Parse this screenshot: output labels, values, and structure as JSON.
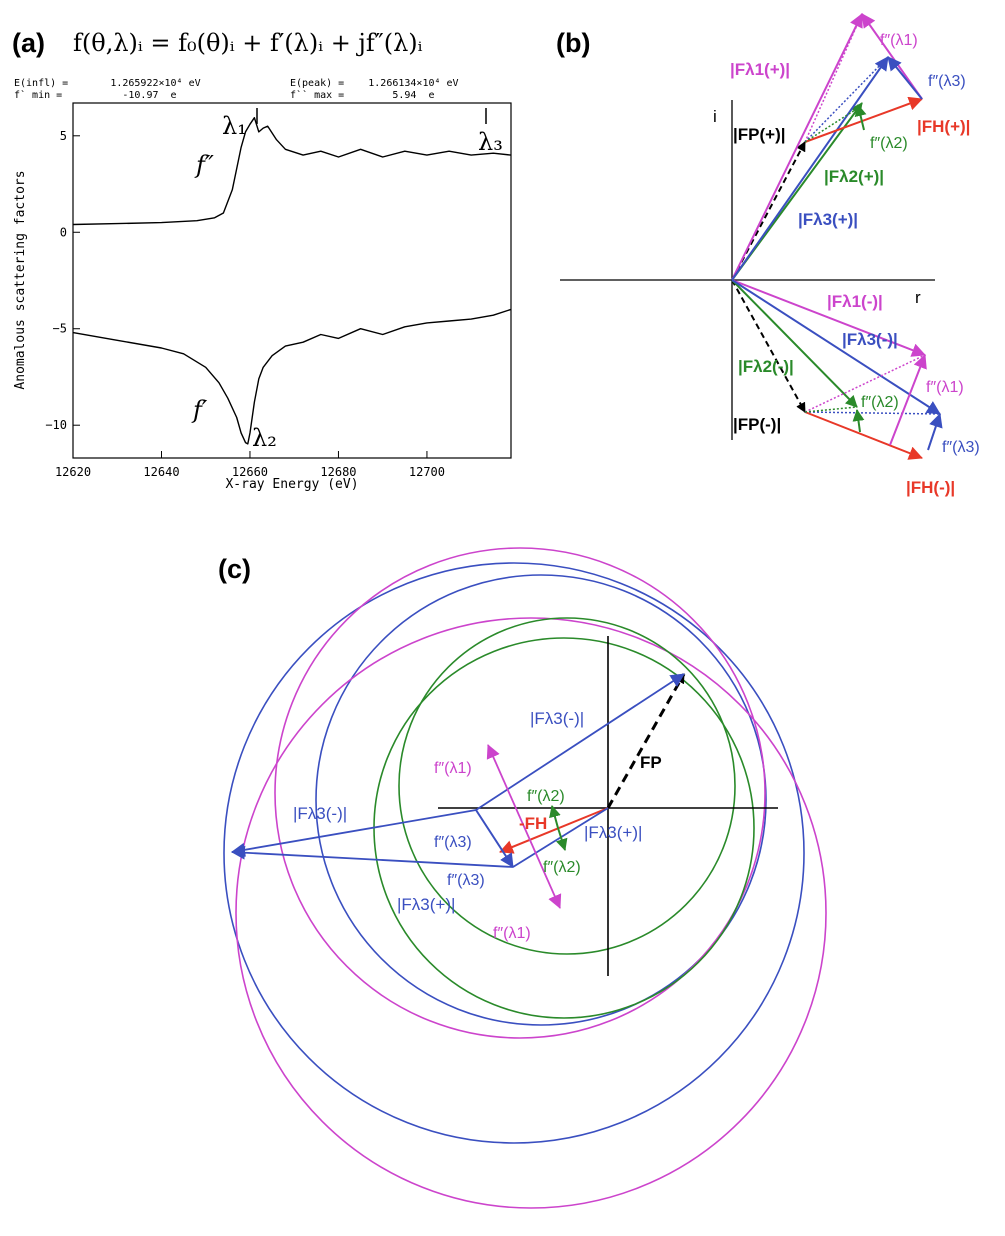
{
  "panel_a": {
    "label": "(a)",
    "equation": "f(θ,λ)ᵢ = f₀(θ)ᵢ + f′(λ)ᵢ + jf″(λ)ᵢ",
    "info_left_line1": "E(infl) =       1.265922×10⁴ eV",
    "info_left_line2": "f` min =          -10.97  e",
    "info_right_line1": "E(peak) =    1.266134×10⁴ eV",
    "info_right_line2": "f`` max =        5.94  e",
    "label_fpp": "f″",
    "label_fp": "f′",
    "label_l1": "λ₁",
    "label_l2": "λ₂",
    "label_l3": "λ₃"
  },
  "chart_data": {
    "type": "line",
    "title": "",
    "xlabel": "X-ray Energy (eV)",
    "ylabel": "Anomalous scattering factors",
    "xlim": [
      12620,
      12719
    ],
    "ylim": [
      -11.7,
      6.7
    ],
    "x_ticks": [
      12620,
      12640,
      12660,
      12680,
      12700
    ],
    "y_ticks": [
      5,
      0,
      -5,
      -10
    ],
    "series": [
      {
        "name": "f″",
        "x": [
          12620,
          12630,
          12640,
          12648,
          12652,
          12654,
          12656,
          12657,
          12658,
          12659,
          12660,
          12661,
          12662,
          12663,
          12664,
          12666,
          12668,
          12672,
          12676,
          12680,
          12685,
          12690,
          12695,
          12700,
          12705,
          12710,
          12715,
          12719
        ],
        "values": [
          0.4,
          0.45,
          0.5,
          0.6,
          0.75,
          1.0,
          2.2,
          3.3,
          4.4,
          5.2,
          5.6,
          5.94,
          5.2,
          5.4,
          5.5,
          4.8,
          4.3,
          4.0,
          4.2,
          3.9,
          4.3,
          3.9,
          4.2,
          4.0,
          4.2,
          4.0,
          4.1,
          4.0
        ]
      },
      {
        "name": "f′",
        "x": [
          12620,
          12630,
          12640,
          12645,
          12650,
          12653,
          12655,
          12657,
          12658,
          12659,
          12659.5,
          12660,
          12661,
          12662,
          12663,
          12665,
          12668,
          12672,
          12676,
          12680,
          12685,
          12690,
          12695,
          12700,
          12705,
          12710,
          12715,
          12719
        ],
        "values": [
          -5.2,
          -5.6,
          -6.0,
          -6.3,
          -7.0,
          -7.8,
          -8.6,
          -9.6,
          -10.4,
          -10.9,
          -10.97,
          -10.4,
          -8.8,
          -7.6,
          -7.0,
          -6.4,
          -5.9,
          -5.7,
          -5.3,
          -5.5,
          -5.0,
          -5.3,
          -4.9,
          -4.7,
          -4.6,
          -4.5,
          -4.3,
          -4.0
        ]
      }
    ],
    "annotations": [
      "E(infl) = 1.265922×10⁴ eV",
      "f` min = -10.97 e",
      "E(peak) = 1.266134×10⁴ eV",
      "f`` max = 5.94 e"
    ]
  },
  "panel_b": {
    "label": "(b)",
    "axis_i": "i",
    "axis_r": "r",
    "Fp_plus": "|FP(+)|",
    "Fp_minus": "|FP(-)|",
    "Fl1_plus": "|Fλ1(+)|",
    "Fl2_plus": "|Fλ2(+)|",
    "Fl3_plus": "|Fλ3(+)|",
    "Fl1_minus": "|Fλ1(-)|",
    "Fl2_minus": "|Fλ2(-)|",
    "Fl3_minus": "|Fλ3(-)|",
    "Fh_plus": "|FH(+)|",
    "Fh_minus": "|FH(-)|",
    "fpp_l1": "f″(λ1)",
    "fpp_l2": "f″(λ2)",
    "fpp_l3": "f″(λ3)"
  },
  "panel_c": {
    "label": "(c)",
    "Fp": "FP",
    "minus_Fh": "-FH",
    "Fl3_minus_a": "|Fλ3(-)|",
    "Fl3_minus_b": "|Fλ3(-)|",
    "Fl3_plus_a": "|Fλ3(+)|",
    "Fl3_plus_b": "|Fλ3(+)|",
    "fpp_l1_a": "f″(λ1)",
    "fpp_l1_b": "f″(λ1)",
    "fpp_l2_a": "f″(λ2)",
    "fpp_l2_b": "f″(λ2)",
    "fpp_l3_a": "f″(λ3)",
    "fpp_l3_b": "f″(λ3)"
  },
  "colors": {
    "lambda1": "#cc44cc",
    "lambda2": "#2a8a2a",
    "lambda3": "#3a4fc0",
    "heavy_atom": "#e83828",
    "protein": "#000000"
  }
}
